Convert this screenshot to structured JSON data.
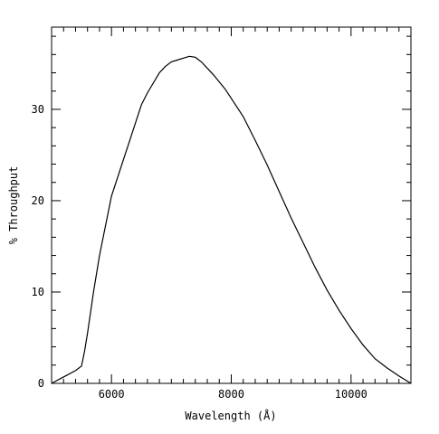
{
  "chart_data": {
    "type": "line",
    "title": "",
    "xlabel": "Wavelength (Å)",
    "ylabel": "% Throughput",
    "xlim": [
      5000,
      11000
    ],
    "ylim": [
      0,
      39
    ],
    "grid": false,
    "x_major_ticks": [
      6000,
      8000,
      10000
    ],
    "x_tick_labels": [
      "6000",
      "8000",
      "10000"
    ],
    "y_major_ticks": [
      0,
      10,
      20,
      30
    ],
    "y_tick_labels": [
      "0",
      "10",
      "20",
      "30"
    ],
    "series": [
      {
        "color": "#000000",
        "x": [
          5000,
          5200,
          5400,
          5500,
          5550,
          5600,
          5700,
          5800,
          6000,
          6200,
          6300,
          6400,
          6500,
          6600,
          6700,
          6800,
          6900,
          7000,
          7100,
          7200,
          7300,
          7400,
          7500,
          7600,
          7700,
          7800,
          7900,
          8000,
          8200,
          8400,
          8600,
          8800,
          9000,
          9200,
          9400,
          9600,
          9800,
          10000,
          10200,
          10400,
          10600,
          10800,
          11000
        ],
        "y": [
          0,
          0.7,
          1.4,
          1.9,
          3.5,
          5.5,
          10.0,
          14.0,
          20.5,
          24.5,
          26.5,
          28.5,
          30.5,
          31.8,
          32.9,
          34.0,
          34.7,
          35.2,
          35.4,
          35.6,
          35.8,
          35.7,
          35.2,
          34.5,
          33.8,
          33.0,
          32.2,
          31.2,
          29.2,
          26.6,
          23.9,
          21.0,
          18.1,
          15.4,
          12.7,
          10.2,
          8.0,
          6.0,
          4.2,
          2.7,
          1.7,
          0.8,
          0
        ]
      }
    ]
  }
}
